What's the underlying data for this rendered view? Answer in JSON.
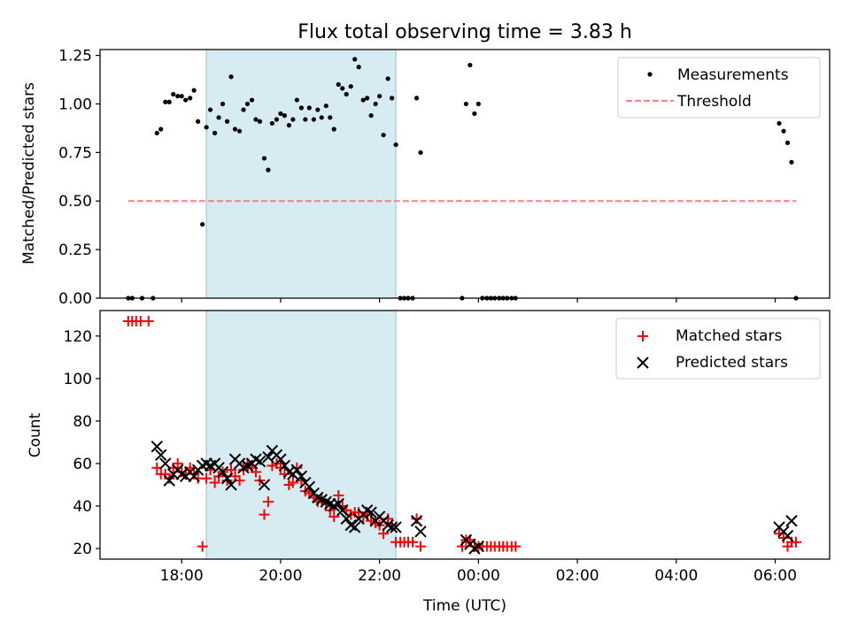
{
  "chart_data": [
    {
      "type": "scatter",
      "title": "Flux total observing time = 3.83 h",
      "xlabel": "",
      "ylabel": "Matched/Predicted stars",
      "xlim": [
        16.35,
        31.1
      ],
      "ylim": [
        0,
        1.28
      ],
      "x_ticks": [
        18,
        20,
        22,
        24,
        26,
        28,
        30
      ],
      "y_ticks": [
        0.0,
        0.25,
        0.5,
        0.75,
        1.0,
        1.25
      ],
      "y_tick_labels": [
        "0.00",
        "0.25",
        "0.50",
        "0.75",
        "1.00",
        "1.25"
      ],
      "shaded_interval": [
        18.5,
        22.33
      ],
      "legend_position": "top-right",
      "series": [
        {
          "name": "Measurements",
          "marker": "dot",
          "color": "#000000",
          "points": [
            [
              16.92,
              0.0
            ],
            [
              17.0,
              0.0
            ],
            [
              17.2,
              0.0
            ],
            [
              17.42,
              0.0
            ],
            [
              17.5,
              0.85
            ],
            [
              17.58,
              0.87
            ],
            [
              17.67,
              1.01
            ],
            [
              17.75,
              1.01
            ],
            [
              17.83,
              1.05
            ],
            [
              17.92,
              1.04
            ],
            [
              18.0,
              1.04
            ],
            [
              18.08,
              1.02
            ],
            [
              18.17,
              1.03
            ],
            [
              18.25,
              1.07
            ],
            [
              18.33,
              0.91
            ],
            [
              18.42,
              0.38
            ],
            [
              18.5,
              0.88
            ],
            [
              18.58,
              0.97
            ],
            [
              18.67,
              0.85
            ],
            [
              18.75,
              0.93
            ],
            [
              18.83,
              1.0
            ],
            [
              18.92,
              0.91
            ],
            [
              19.0,
              1.14
            ],
            [
              19.08,
              0.87
            ],
            [
              19.17,
              0.86
            ],
            [
              19.25,
              0.97
            ],
            [
              19.33,
              1.0
            ],
            [
              19.42,
              1.02
            ],
            [
              19.5,
              0.92
            ],
            [
              19.58,
              0.91
            ],
            [
              19.67,
              0.72
            ],
            [
              19.75,
              0.66
            ],
            [
              19.83,
              0.9
            ],
            [
              19.92,
              0.92
            ],
            [
              20.0,
              0.95
            ],
            [
              20.08,
              0.94
            ],
            [
              20.17,
              0.89
            ],
            [
              20.25,
              0.92
            ],
            [
              20.33,
              1.02
            ],
            [
              20.42,
              0.98
            ],
            [
              20.5,
              0.92
            ],
            [
              20.58,
              0.98
            ],
            [
              20.67,
              0.92
            ],
            [
              20.75,
              0.97
            ],
            [
              20.83,
              0.93
            ],
            [
              20.92,
              0.99
            ],
            [
              21.0,
              0.93
            ],
            [
              21.08,
              0.87
            ],
            [
              21.17,
              1.1
            ],
            [
              21.25,
              1.08
            ],
            [
              21.33,
              1.05
            ],
            [
              21.42,
              1.09
            ],
            [
              21.5,
              1.23
            ],
            [
              21.58,
              1.19
            ],
            [
              21.67,
              1.02
            ],
            [
              21.75,
              1.03
            ],
            [
              21.83,
              0.94
            ],
            [
              21.92,
              1.0
            ],
            [
              22.0,
              1.04
            ],
            [
              22.08,
              0.84
            ],
            [
              22.17,
              1.13
            ],
            [
              22.25,
              1.03
            ],
            [
              22.33,
              0.79
            ],
            [
              22.42,
              0.0
            ],
            [
              22.5,
              0.0
            ],
            [
              22.58,
              0.0
            ],
            [
              22.67,
              0.0
            ],
            [
              22.75,
              1.03
            ],
            [
              22.83,
              0.75
            ],
            [
              23.67,
              0.0
            ],
            [
              23.75,
              1.0
            ],
            [
              23.83,
              1.2
            ],
            [
              23.92,
              0.95
            ],
            [
              24.0,
              1.0
            ],
            [
              24.08,
              0.0
            ],
            [
              24.17,
              0.0
            ],
            [
              24.25,
              0.0
            ],
            [
              24.33,
              0.0
            ],
            [
              24.42,
              0.0
            ],
            [
              24.5,
              0.0
            ],
            [
              24.58,
              0.0
            ],
            [
              24.67,
              0.0
            ],
            [
              24.75,
              0.0
            ],
            [
              30.08,
              0.9
            ],
            [
              30.17,
              0.86
            ],
            [
              30.25,
              0.8
            ],
            [
              30.33,
              0.7
            ],
            [
              30.42,
              0.0
            ]
          ]
        },
        {
          "name": "Threshold",
          "style": "dashed",
          "color": "#ff7f7f",
          "x": [
            16.92,
            30.42
          ],
          "y": [
            0.5,
            0.5
          ]
        }
      ]
    },
    {
      "type": "scatter",
      "xlabel": "Time (UTC)",
      "ylabel": "Count",
      "xlim": [
        16.35,
        31.1
      ],
      "ylim": [
        15,
        132
      ],
      "x_ticks": [
        18,
        20,
        22,
        24,
        26,
        28,
        30
      ],
      "x_tick_labels": [
        "18:00",
        "20:00",
        "22:00",
        "00:00",
        "02:00",
        "04:00",
        "06:00"
      ],
      "y_ticks": [
        20,
        40,
        60,
        80,
        100,
        120
      ],
      "y_tick_labels": [
        "20",
        "40",
        "60",
        "80",
        "100",
        "120"
      ],
      "shaded_interval": [
        18.5,
        22.33
      ],
      "legend_position": "top-right",
      "series": [
        {
          "name": "Matched stars",
          "marker": "plus",
          "color": "#ff0000",
          "points": [
            [
              16.92,
              127
            ],
            [
              17.0,
              127
            ],
            [
              17.08,
              127
            ],
            [
              17.17,
              127
            ],
            [
              17.33,
              127
            ],
            [
              17.5,
              58
            ],
            [
              17.58,
              55
            ],
            [
              17.67,
              55
            ],
            [
              17.75,
              53
            ],
            [
              17.83,
              58
            ],
            [
              17.92,
              60
            ],
            [
              18.0,
              56
            ],
            [
              18.08,
              55
            ],
            [
              18.17,
              58
            ],
            [
              18.25,
              55
            ],
            [
              18.33,
              53
            ],
            [
              18.42,
              21
            ],
            [
              18.5,
              53
            ],
            [
              18.58,
              57
            ],
            [
              18.67,
              51
            ],
            [
              18.75,
              54
            ],
            [
              18.83,
              56
            ],
            [
              18.92,
              52
            ],
            [
              19.0,
              57
            ],
            [
              19.08,
              54
            ],
            [
              19.17,
              52
            ],
            [
              19.25,
              57
            ],
            [
              19.33,
              60
            ],
            [
              19.42,
              58
            ],
            [
              19.5,
              56
            ],
            [
              19.58,
              52
            ],
            [
              19.67,
              36
            ],
            [
              19.75,
              42
            ],
            [
              19.83,
              59
            ],
            [
              19.92,
              60
            ],
            [
              20.0,
              58
            ],
            [
              20.08,
              55
            ],
            [
              20.17,
              50
            ],
            [
              20.25,
              51
            ],
            [
              20.33,
              58
            ],
            [
              20.42,
              52
            ],
            [
              20.5,
              47
            ],
            [
              20.58,
              46
            ],
            [
              20.67,
              44
            ],
            [
              20.75,
              42
            ],
            [
              20.83,
              43
            ],
            [
              20.92,
              41
            ],
            [
              21.0,
              38
            ],
            [
              21.08,
              35
            ],
            [
              21.17,
              45
            ],
            [
              21.25,
              40
            ],
            [
              21.33,
              38
            ],
            [
              21.42,
              36
            ],
            [
              21.5,
              37
            ],
            [
              21.58,
              37
            ],
            [
              21.67,
              35
            ],
            [
              21.75,
              36
            ],
            [
              21.83,
              33
            ],
            [
              21.92,
              32
            ],
            [
              22.0,
              31
            ],
            [
              22.08,
              27
            ],
            [
              22.17,
              34
            ],
            [
              22.25,
              31
            ],
            [
              22.33,
              23
            ],
            [
              22.42,
              23
            ],
            [
              22.5,
              23
            ],
            [
              22.58,
              23
            ],
            [
              22.67,
              23
            ],
            [
              22.75,
              34
            ],
            [
              22.83,
              21
            ],
            [
              23.67,
              21
            ],
            [
              23.75,
              24
            ],
            [
              23.83,
              24
            ],
            [
              23.92,
              21
            ],
            [
              24.0,
              21
            ],
            [
              24.08,
              21
            ],
            [
              24.17,
              21
            ],
            [
              24.25,
              21
            ],
            [
              24.33,
              21
            ],
            [
              24.42,
              21
            ],
            [
              24.5,
              21
            ],
            [
              24.58,
              21
            ],
            [
              24.67,
              21
            ],
            [
              24.75,
              21
            ],
            [
              30.08,
              27
            ],
            [
              30.17,
              25
            ],
            [
              30.25,
              21
            ],
            [
              30.33,
              23
            ],
            [
              30.42,
              23
            ]
          ]
        },
        {
          "name": "Predicted stars",
          "marker": "x",
          "color": "#000000",
          "points": [
            [
              17.5,
              68
            ],
            [
              17.58,
              64
            ],
            [
              17.67,
              60
            ],
            [
              17.75,
              52
            ],
            [
              17.83,
              55
            ],
            [
              17.92,
              57
            ],
            [
              18.0,
              55
            ],
            [
              18.08,
              54
            ],
            [
              18.17,
              56
            ],
            [
              18.25,
              54
            ],
            [
              18.33,
              57
            ],
            [
              18.42,
              59
            ],
            [
              18.5,
              60
            ],
            [
              18.58,
              59
            ],
            [
              18.67,
              60
            ],
            [
              18.75,
              58
            ],
            [
              18.83,
              56
            ],
            [
              18.92,
              53
            ],
            [
              19.0,
              50
            ],
            [
              19.08,
              62
            ],
            [
              19.17,
              60
            ],
            [
              19.25,
              58
            ],
            [
              19.33,
              59
            ],
            [
              19.42,
              60
            ],
            [
              19.5,
              62
            ],
            [
              19.58,
              61
            ],
            [
              19.67,
              50
            ],
            [
              19.75,
              63
            ],
            [
              19.83,
              66
            ],
            [
              19.92,
              64
            ],
            [
              20.0,
              62
            ],
            [
              20.08,
              59
            ],
            [
              20.17,
              56
            ],
            [
              20.25,
              55
            ],
            [
              20.33,
              57
            ],
            [
              20.42,
              54
            ],
            [
              20.5,
              51
            ],
            [
              20.58,
              49
            ],
            [
              20.67,
              46
            ],
            [
              20.75,
              44
            ],
            [
              20.83,
              43
            ],
            [
              20.92,
              42
            ],
            [
              21.0,
              41
            ],
            [
              21.08,
              40
            ],
            [
              21.17,
              41
            ],
            [
              21.25,
              38
            ],
            [
              21.33,
              34
            ],
            [
              21.42,
              31
            ],
            [
              21.5,
              30
            ],
            [
              21.58,
              34
            ],
            [
              21.67,
              36
            ],
            [
              21.75,
              38
            ],
            [
              21.83,
              37
            ],
            [
              21.92,
              33
            ],
            [
              22.0,
              35
            ],
            [
              22.08,
              33
            ],
            [
              22.17,
              31
            ],
            [
              22.25,
              30
            ],
            [
              22.33,
              30
            ],
            [
              22.75,
              33
            ],
            [
              22.83,
              28
            ],
            [
              23.75,
              24
            ],
            [
              23.83,
              22
            ],
            [
              23.92,
              20
            ],
            [
              24.0,
              21
            ],
            [
              30.08,
              30
            ],
            [
              30.17,
              28
            ],
            [
              30.25,
              26
            ],
            [
              30.33,
              33
            ]
          ]
        }
      ]
    }
  ]
}
